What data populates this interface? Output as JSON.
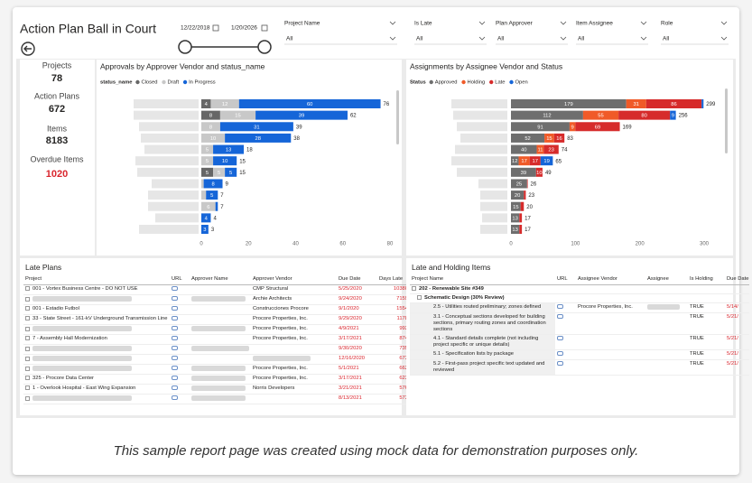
{
  "header": {
    "title": "Action Plan Ball in Court",
    "date_start": "12/22/2018",
    "date_end": "1/20/2026",
    "filters": [
      {
        "label": "Project Name",
        "value": "All"
      },
      {
        "label": "Is Late",
        "value": "All"
      },
      {
        "label": "Plan Approver",
        "value": "All"
      },
      {
        "label": "Item Assignee",
        "value": "All"
      },
      {
        "label": "Role",
        "value": "All"
      }
    ]
  },
  "kpis": [
    {
      "label": "Projects",
      "value": 78
    },
    {
      "label": "Action Plans",
      "value": 672
    },
    {
      "label": "Items",
      "value": 8183
    },
    {
      "label": "Overdue Items",
      "value": 1020,
      "color": "#d9262e"
    }
  ],
  "chart_data": [
    {
      "type": "bar",
      "orientation": "horizontal",
      "stacked": true,
      "title": "Approvals by Approver Vendor and status_name",
      "legend_title": "status_name",
      "series": [
        {
          "name": "Closed",
          "color": "#666666",
          "values": [
            4,
            8,
            0,
            0,
            0,
            0,
            5,
            0,
            0,
            0,
            0,
            0
          ]
        },
        {
          "name": "Draft",
          "color": "#c8c8c8",
          "values": [
            12,
            15,
            8,
            10,
            5,
            5,
            5,
            1,
            2,
            6,
            0,
            0
          ]
        },
        {
          "name": "In Progress",
          "color": "#1565d8",
          "values": [
            60,
            39,
            31,
            28,
            13,
            10,
            5,
            8,
            5,
            1,
            4,
            3
          ]
        }
      ],
      "totals": [
        76,
        62,
        39,
        38,
        18,
        15,
        15,
        9,
        7,
        7,
        4,
        3
      ],
      "xlim": [
        0,
        80
      ],
      "xticks": [
        0,
        20,
        40,
        60,
        80
      ]
    },
    {
      "type": "bar",
      "orientation": "horizontal",
      "stacked": true,
      "title": "Assignments by Assignee Vendor and Status",
      "legend_title": "Status",
      "series": [
        {
          "name": "Approved",
          "color": "#6e6e6e",
          "values": [
            179,
            112,
            91,
            52,
            40,
            12,
            39,
            25,
            20,
            15,
            13,
            13
          ]
        },
        {
          "name": "Holding",
          "color": "#f05a28",
          "values": [
            31,
            55,
            9,
            15,
            11,
            17,
            0,
            0,
            0,
            0,
            0,
            0
          ]
        },
        {
          "name": "Late",
          "color": "#d62b2b",
          "values": [
            86,
            80,
            69,
            16,
            23,
            17,
            10,
            1,
            3,
            5,
            4,
            4
          ]
        },
        {
          "name": "Open",
          "color": "#1565d8",
          "values": [
            3,
            9,
            0,
            0,
            0,
            19,
            0,
            0,
            0,
            0,
            0,
            0
          ]
        }
      ],
      "totals": [
        299,
        256,
        169,
        83,
        74,
        65,
        49,
        26,
        23,
        20,
        17,
        17
      ],
      "xlim": [
        0,
        300
      ],
      "xticks": [
        0,
        100,
        200,
        300
      ]
    }
  ],
  "late_plans": {
    "title": "Late Plans",
    "columns": [
      "Project",
      "URL",
      "Approver Name",
      "Approver Vendor",
      "Due Date",
      "Days Late"
    ],
    "rows": [
      {
        "project": "001 - Vortex Business Centre - DO NOT USE",
        "vendor": "CMP Structural",
        "due": "5/25/2020",
        "days": 10380
      },
      {
        "project": null,
        "vendor": "Archie Architects",
        "due": "9/24/2020",
        "days": 7159
      },
      {
        "project": "001 - Estadio Futbol",
        "vendor": "Construcciones Procore",
        "due": "9/1/2020",
        "days": 1554
      },
      {
        "project": "33 - State Street - 161-kV Underground Transmission Line",
        "vendor": "Procore Properties, Inc.",
        "due": "9/29/2020",
        "days": 1178
      },
      {
        "project": null,
        "vendor": "Procore Properties, Inc.",
        "due": "4/9/2021",
        "days": 992
      },
      {
        "project": "7 - Assembly Hall Modernization",
        "vendor": "Procore Properties, Inc.",
        "due": "3/17/2021",
        "days": 874
      },
      {
        "project": null,
        "vendor": null,
        "due": "9/30/2020",
        "days": 735
      },
      {
        "project": null,
        "vendor": null,
        "due": "12/16/2020",
        "days": 673
      },
      {
        "project": null,
        "vendor": "Procore Properties, Inc.",
        "due": "5/1/2021",
        "days": 662
      },
      {
        "project": "325 - Procore Data Center",
        "vendor": "Procore Properties, Inc.",
        "due": "3/17/2021",
        "days": 623
      },
      {
        "project": "1 - Overlook Hospital - East Wing Expansion",
        "vendor": "Norris Developers",
        "due": "3/21/2021",
        "days": 576
      },
      {
        "project": null,
        "vendor": null,
        "due": "8/13/2021",
        "days": 573
      }
    ]
  },
  "late_holding": {
    "title": "Late and Holding Items",
    "columns": [
      "Project Name",
      "URL",
      "Assignee Vendor",
      "Assignee",
      "Is Holding",
      "Due Date"
    ],
    "group": {
      "name": "202 - Renewable Site #349",
      "phase": {
        "name": "Schematic Design (30% Review)",
        "items": [
          {
            "name": "2.5 - Utilities routed preliminary; zones defined",
            "vendor": "Procore Properties, Inc.",
            "holding": "TRUE",
            "due": "5/14/"
          },
          {
            "name": "3.1 - Conceptual sections developed for building sections, primary routing zones and coordination sections",
            "holding": "TRUE",
            "due": "5/21/"
          },
          {
            "name": "4.1 - Standard details complete (not including project specific or unique details)",
            "holding": "TRUE",
            "due": "5/21/"
          },
          {
            "name": "5.1 - Specification lists by package",
            "holding": "TRUE",
            "due": "5/21/"
          },
          {
            "name": "5.2 - First-pass project specific text updated and reviewed",
            "holding": "TRUE",
            "due": "5/21/"
          }
        ]
      }
    }
  },
  "footer": "This sample report page was created using mock data for demonstration purposes only."
}
